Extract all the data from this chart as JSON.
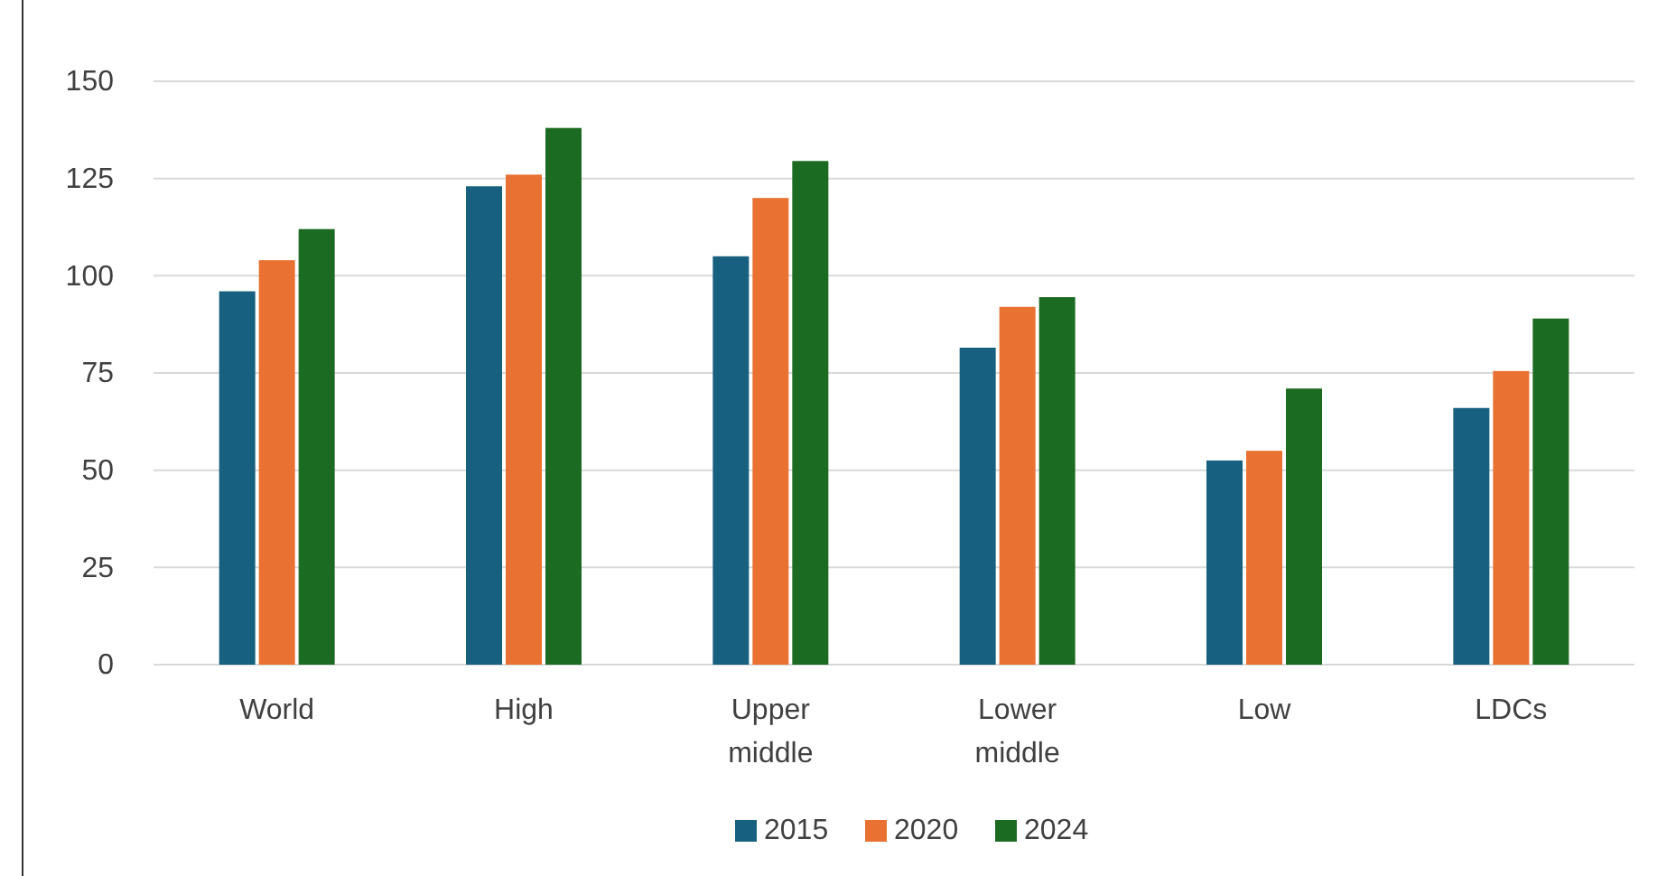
{
  "chart_data": {
    "type": "bar",
    "categories": [
      "World",
      "High",
      "Upper middle",
      "Lower middle",
      "Low",
      "LDCs"
    ],
    "series": [
      {
        "name": "2015",
        "color": "#17607f",
        "values": [
          96,
          123,
          105,
          81.5,
          52.5,
          66
        ]
      },
      {
        "name": "2020",
        "color": "#e97132",
        "values": [
          104,
          126,
          120,
          92,
          55,
          75.5
        ]
      },
      {
        "name": "2024",
        "color": "#1b6b23",
        "values": [
          112,
          138,
          129.5,
          94.5,
          71,
          89
        ]
      }
    ],
    "ylim": [
      0,
      150
    ],
    "yticks": [
      0,
      25,
      50,
      75,
      100,
      125,
      150
    ],
    "grid": "y",
    "legend": "bottom"
  }
}
